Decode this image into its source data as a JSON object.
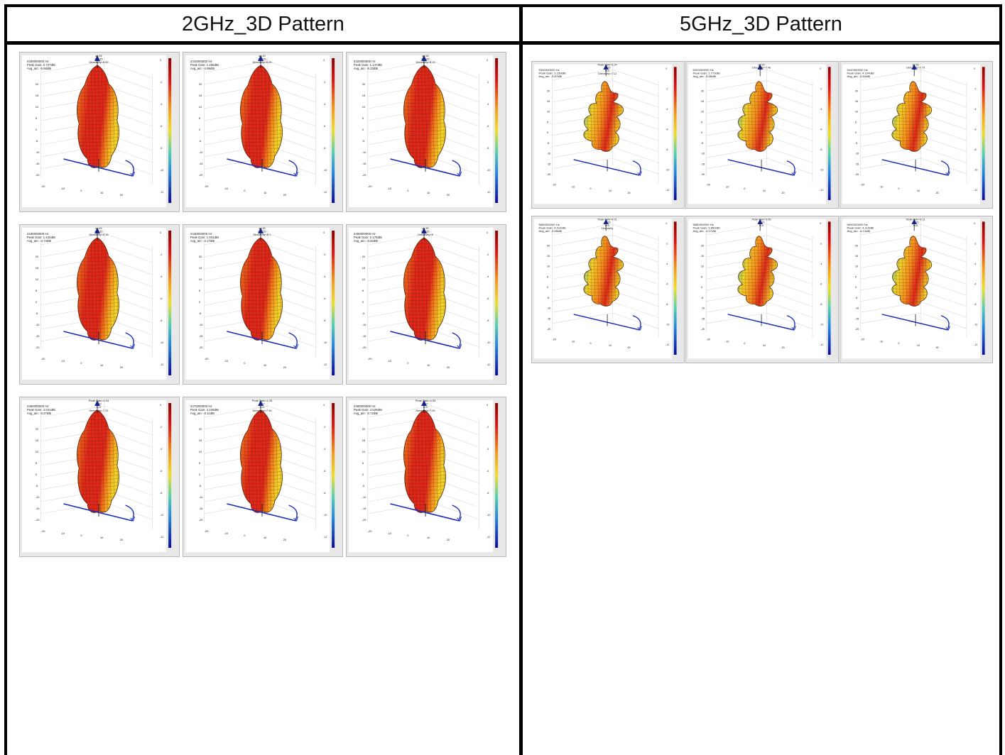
{
  "headers": {
    "left": "2GHz_3D Pattern",
    "right": "5GHz_3D Pattern"
  },
  "plots_2g": [
    {
      "freq": "2400000000 Hz",
      "peak": "Peak Gain: 0.727dBi",
      "avg": "Avg_ain: -5.66dBi",
      "top": [
        "φ=15",
        "θ=135",
        "Directivity=6.42"
      ]
    },
    {
      "freq": "2410000000 Hz",
      "peak": "Peak Gain: 1.255dBi",
      "avg": "Avg_ain: -4.99dBi",
      "top": [
        "φ=15",
        "θ=135",
        "Directivity=6.25"
      ]
    },
    {
      "freq": "2420000000 Hz",
      "peak": "Peak Gain: 1.147dBi",
      "avg": "Avg_ain: -5.33dBi",
      "top": [
        "φ=15",
        "θ=135",
        "Directivity=6.10"
      ]
    },
    {
      "freq": "2430000000 Hz",
      "peak": "Peak Gain: 1.442dBi",
      "avg": "Avg_ain: -4.74dBi",
      "top": [
        "φ=15",
        "θ=135",
        "Directivity=6.18"
      ]
    },
    {
      "freq": "2440000000 Hz",
      "peak": "Peak Gain: 1.931dBi",
      "avg": "Avg_ain: -4.17dBi",
      "top": [
        "φ=15",
        "θ=135",
        "Directivity=6.1"
      ]
    },
    {
      "freq": "2450000000 Hz",
      "peak": "Peak Gain: 2.178dBi",
      "avg": "Avg_ain: -3.82dBi",
      "top": [
        "φ=15",
        "θ=135",
        "Directivity=6"
      ]
    },
    {
      "freq": "2460000000 Hz",
      "peak": "Peak Gain: 4.041dBi",
      "avg": "Avg_ain: -3.27dBi",
      "top": [
        "Peak Gain=4.04",
        "φ=0",
        "θ=0",
        "Directivity=7.31"
      ]
    },
    {
      "freq": "2470000000 Hz",
      "peak": "Peak Gain: 4.249dBi",
      "avg": "Avg_ain: -3.11dBi",
      "top": [
        "Peak Gain=4.25",
        "φ=0",
        "θ=0",
        "Directivity=7.36"
      ]
    },
    {
      "freq": "2480000000 Hz",
      "peak": "Peak Gain: 4.529dBi",
      "avg": "Avg_ain: -2.72dBi",
      "top": [
        "Peak Gain=4.53",
        "φ=0",
        "θ=0",
        "Directivity=7.25"
      ]
    }
  ],
  "plots_5g": [
    {
      "freq": "5300000000 Hz",
      "peak": "Peak Gain: 3.239dBi",
      "avg": "Avg_ain: -3.87dBi",
      "top": [
        "Peak Gain=3.24",
        "φ=15",
        "θ=0",
        "Directivity=7.12"
      ]
    },
    {
      "freq": "5320000000 Hz",
      "peak": "Peak Gain: 1.773dBi",
      "avg": "Avg_ain: -5.68dBi",
      "top": [
        "φ=15",
        "Directivity=7.46"
      ]
    },
    {
      "freq": "5440000000 Hz",
      "peak": "Peak Gain: 4.104dBi",
      "avg": "Avg_ain: -3.64dBi",
      "top": [
        "φ=15",
        "Directivity=7.75"
      ]
    },
    {
      "freq": "5660000000 Hz",
      "peak": "Peak Gain: 4.014dBi",
      "avg": "Avg_ain: -3.65dBi",
      "top": [
        "Peak Gain=4.01",
        "φ=15",
        "θ=0",
        "Directivity"
      ]
    },
    {
      "freq": "5680000000 Hz",
      "peak": "Peak Gain: 3.890dBi",
      "avg": "Avg_ain: -4.07dBi",
      "top": [
        "Peak Gain=3.89",
        "φ=15",
        "θ=0"
      ]
    },
    {
      "freq": "5900000000 Hz",
      "peak": "Peak Gain: 4.113dBi",
      "avg": "Avg_ain: -4.13dBi",
      "top": [
        "Peak Gain=4.11",
        "φ=15",
        "θ=0"
      ]
    }
  ],
  "colors": {
    "border": "#000000",
    "lobe_hot": "#e0281a",
    "lobe_warm": "#f58a1c",
    "lobe_mid": "#f2d22a",
    "lobe_cool": "#3cc6c4",
    "axis_blue": "#1a2bb8"
  }
}
